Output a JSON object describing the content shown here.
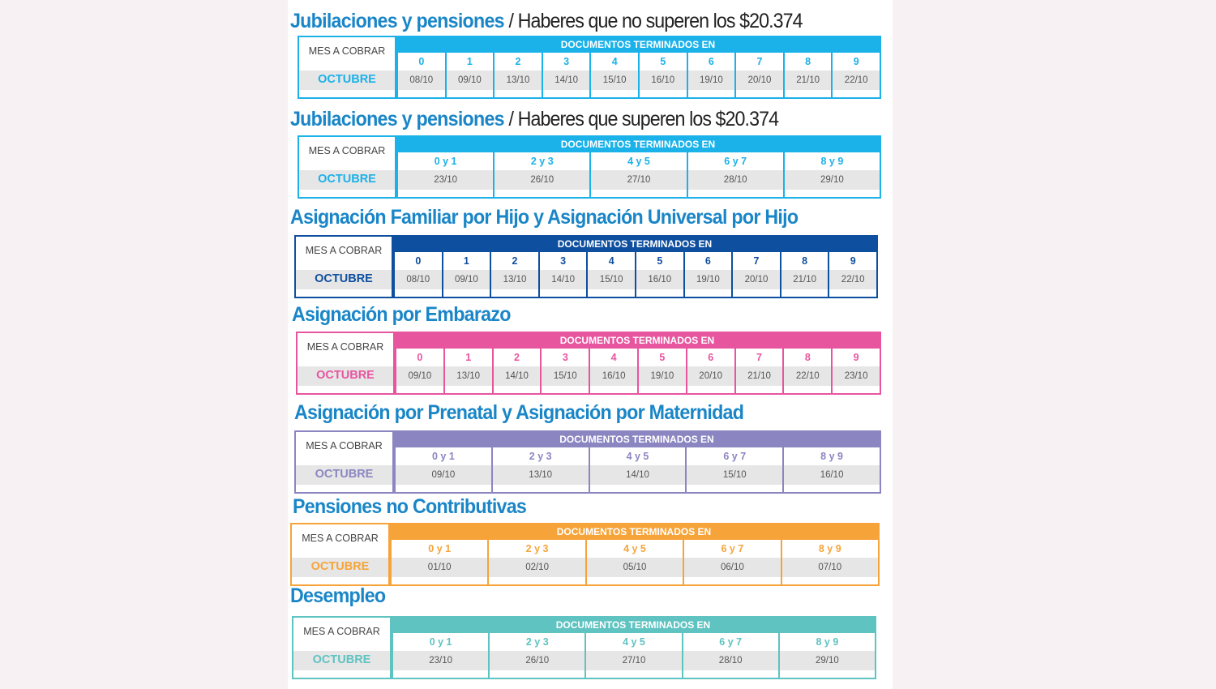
{
  "labels": {
    "mes": "MES A COBRAR",
    "docs": "DOCUMENTOS TERMINADOS EN"
  },
  "sections": [
    {
      "title": "Jubilaciones y pensiones",
      "subtitle": "/ Haberes que no superen los $20.374",
      "color": "#1bb1e9",
      "title_color": "#1a86c7",
      "month": "OCTUBRE",
      "columns": [
        {
          "d": "0",
          "date": "08/10"
        },
        {
          "d": "1",
          "date": "09/10"
        },
        {
          "d": "2",
          "date": "13/10"
        },
        {
          "d": "3",
          "date": "14/10"
        },
        {
          "d": "4",
          "date": "15/10"
        },
        {
          "d": "5",
          "date": "16/10"
        },
        {
          "d": "6",
          "date": "19/10"
        },
        {
          "d": "7",
          "date": "20/10"
        },
        {
          "d": "8",
          "date": "21/10"
        },
        {
          "d": "9",
          "date": "22/10"
        }
      ]
    },
    {
      "title": "Jubilaciones y pensiones",
      "subtitle": "/ Haberes que superen los $20.374",
      "color": "#1bb1e9",
      "title_color": "#1a86c7",
      "month": "OCTUBRE",
      "columns": [
        {
          "d": "0 y 1",
          "date": "23/10"
        },
        {
          "d": "2 y 3",
          "date": "26/10"
        },
        {
          "d": "4 y 5",
          "date": "27/10"
        },
        {
          "d": "6 y 7",
          "date": "28/10"
        },
        {
          "d": "8 y 9",
          "date": "29/10"
        }
      ]
    },
    {
      "title": "Asignación Familiar por Hijo y Asignación Universal por Hijo",
      "subtitle": "",
      "color": "#0f4f9f",
      "title_color": "#1a86c7",
      "month": "OCTUBRE",
      "columns": [
        {
          "d": "0",
          "date": "08/10"
        },
        {
          "d": "1",
          "date": "09/10"
        },
        {
          "d": "2",
          "date": "13/10"
        },
        {
          "d": "3",
          "date": "14/10"
        },
        {
          "d": "4",
          "date": "15/10"
        },
        {
          "d": "5",
          "date": "16/10"
        },
        {
          "d": "6",
          "date": "19/10"
        },
        {
          "d": "7",
          "date": "20/10"
        },
        {
          "d": "8",
          "date": "21/10"
        },
        {
          "d": "9",
          "date": "22/10"
        }
      ]
    },
    {
      "title": "Asignación por Embarazo",
      "subtitle": "",
      "color": "#e8559f",
      "title_color": "#1a86c7",
      "month": "OCTUBRE",
      "columns": [
        {
          "d": "0",
          "date": "09/10"
        },
        {
          "d": "1",
          "date": "13/10"
        },
        {
          "d": "2",
          "date": "14/10"
        },
        {
          "d": "3",
          "date": "15/10"
        },
        {
          "d": "4",
          "date": "16/10"
        },
        {
          "d": "5",
          "date": "19/10"
        },
        {
          "d": "6",
          "date": "20/10"
        },
        {
          "d": "7",
          "date": "21/10"
        },
        {
          "d": "8",
          "date": "22/10"
        },
        {
          "d": "9",
          "date": "23/10"
        }
      ]
    },
    {
      "title": "Asignación por Prenatal y Asignación por Maternidad",
      "subtitle": "",
      "color": "#8b86c1",
      "title_color": "#1a86c7",
      "month": "OCTUBRE",
      "columns": [
        {
          "d": "0 y 1",
          "date": "09/10"
        },
        {
          "d": "2 y 3",
          "date": "13/10"
        },
        {
          "d": "4 y 5",
          "date": "14/10"
        },
        {
          "d": "6 y 7",
          "date": "15/10"
        },
        {
          "d": "8 y 9",
          "date": "16/10"
        }
      ]
    },
    {
      "title": "Pensiones no Contributivas",
      "subtitle": "",
      "color": "#f6a43a",
      "title_color": "#1a86c7",
      "month": "OCTUBRE",
      "columns": [
        {
          "d": "0 y 1",
          "date": "01/10"
        },
        {
          "d": "2 y 3",
          "date": "02/10"
        },
        {
          "d": "4 y 5",
          "date": "05/10"
        },
        {
          "d": "6 y 7",
          "date": "06/10"
        },
        {
          "d": "8 y 9",
          "date": "07/10"
        }
      ]
    },
    {
      "title": "Desempleo",
      "subtitle": "",
      "color": "#5ec3c1",
      "title_color": "#1a86c7",
      "month": "OCTUBRE",
      "columns": [
        {
          "d": "0 y 1",
          "date": "23/10"
        },
        {
          "d": "2 y 3",
          "date": "26/10"
        },
        {
          "d": "4 y 5",
          "date": "27/10"
        },
        {
          "d": "6 y 7",
          "date": "28/10"
        },
        {
          "d": "8 y 9",
          "date": "29/10"
        }
      ]
    }
  ]
}
